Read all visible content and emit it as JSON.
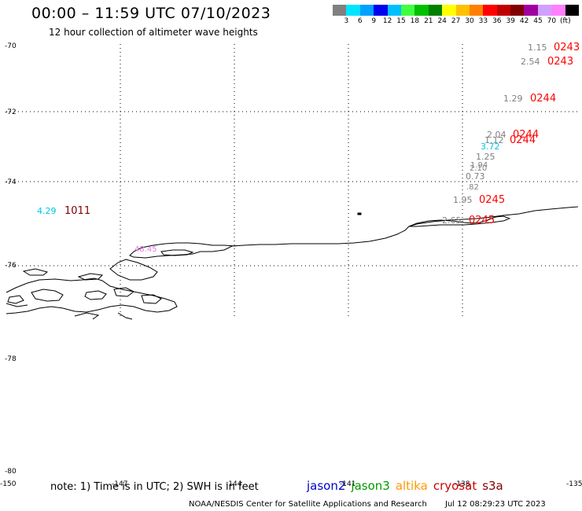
{
  "title": "00:00 – 11:59 UTC 07/10/2023",
  "subtitle": "12 hour collection of altimeter wave heights",
  "colorbar": {
    "colors": [
      "#808080",
      "#00e5ff",
      "#00a0ff",
      "#0000ee",
      "#00bfff",
      "#40ff40",
      "#00c000",
      "#008000",
      "#ffff00",
      "#ffc000",
      "#ff8000",
      "#ff0000",
      "#c00000",
      "#800000",
      "#a000a0",
      "#d0a0ff",
      "#ff80ff",
      "#000000"
    ],
    "labels": [
      "3",
      "6",
      "9",
      "12",
      "15",
      "18",
      "21",
      "24",
      "27",
      "30",
      "33",
      "36",
      "39",
      "42",
      "45",
      "70",
      "(ft)"
    ]
  },
  "lat_labels": [
    "-70",
    "-72",
    "-74",
    "-76",
    "-78",
    "-78",
    "-80"
  ],
  "lon_labels": [
    "-150",
    "-147",
    "-144",
    "-141",
    "-138",
    "-135"
  ],
  "observations": [
    {
      "swh": "1.15",
      "swh_color": "#808080",
      "time": "0243",
      "time_color": "#ff0000"
    },
    {
      "swh": "2.54",
      "swh_color": "#808080",
      "time": "0243",
      "time_color": "#ff0000"
    },
    {
      "swh": "1.29",
      "swh_color": "#808080",
      "time": "0244",
      "time_color": "#ff0000"
    },
    {
      "swh": "2.04",
      "swh_color": "#808080",
      "time": "0244",
      "time_color": "#ff0000"
    },
    {
      "swh": "1.12",
      "swh_color": "#808080",
      "time": "0244",
      "time_color": "#ff0000"
    },
    {
      "swh": "3.72",
      "swh_color": "#00c8e8",
      "time": "",
      "time_color": "#ff0000"
    },
    {
      "swh": "1.25",
      "swh_color": "#808080",
      "time": "",
      "time_color": "#ff0000"
    },
    {
      "swh": "1.94",
      "swh_color": "#808080",
      "time": "",
      "time_color": "#ff0000"
    },
    {
      "swh": "2.10",
      "swh_color": "#808080",
      "time": "",
      "time_color": "#ff0000"
    },
    {
      "swh": "0.73",
      "swh_color": "#808080",
      "time": "",
      "time_color": "#ff0000"
    },
    {
      "swh": ".82",
      "swh_color": "#808080",
      "time": "",
      "time_color": "#ff0000"
    },
    {
      "swh": "1.95",
      "swh_color": "#808080",
      "time": "0245",
      "time_color": "#ff0000"
    },
    {
      "swh": "2.65",
      "swh_color": "#808080",
      "time": "0245",
      "time_color": "#ff0000"
    },
    {
      "swh": "4.29",
      "swh_color": "#00c8e8",
      "time": "1011",
      "time_color": "#800000"
    },
    {
      "swh": "48.45",
      "swh_color": "#e080e0",
      "time": "",
      "time_color": "#800000"
    }
  ],
  "note": "note: 1) Time is in UTC; 2) SWH is in feet",
  "satellites": [
    {
      "name": "jason2",
      "color": "#0000cc"
    },
    {
      "name": "jason3",
      "color": "#009900"
    },
    {
      "name": "altika",
      "color": "#ff9900"
    },
    {
      "name": "cryosat",
      "color": "#cc0000"
    },
    {
      "name": "s3a",
      "color": "#800000"
    }
  ],
  "footer": {
    "credit": "NOAA/NESDIS Center for Satellite Applications and Research",
    "timestamp": "Jul 12 08:29:23 UTC 2023"
  }
}
